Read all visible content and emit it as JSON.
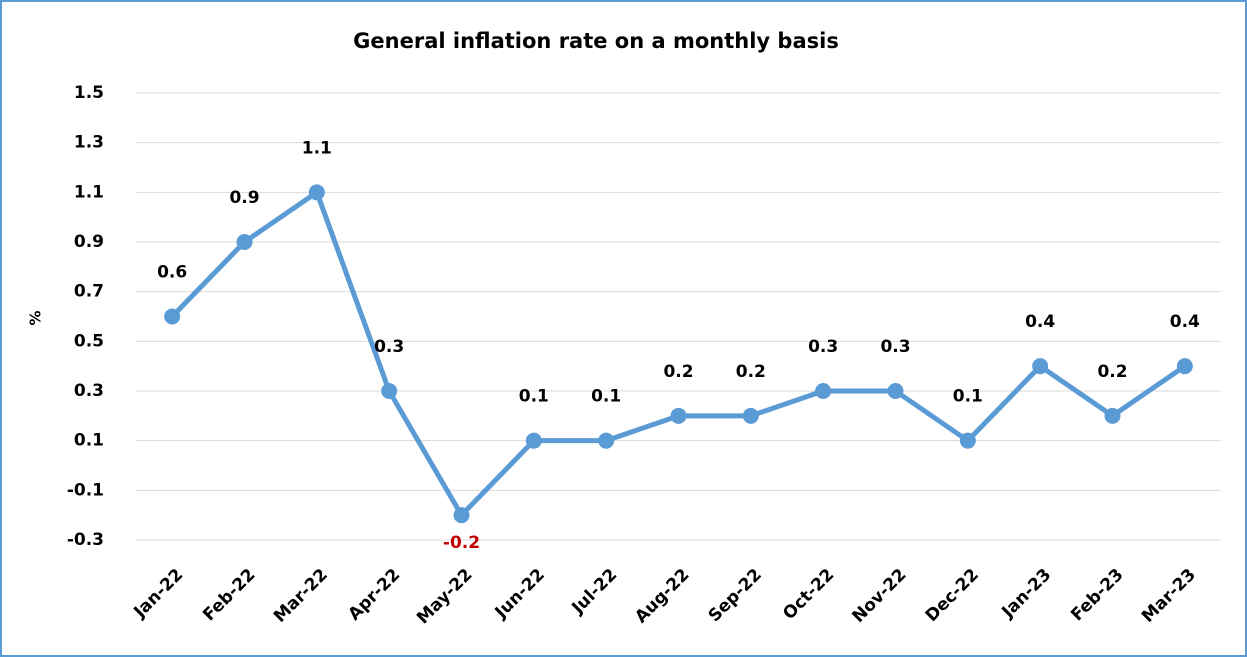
{
  "chart_data": {
    "type": "line",
    "title": "General inflation rate on a monthly basis",
    "y_label": "%",
    "categories": [
      "Jan-22",
      "Feb-22",
      "Mar-22",
      "Apr-22",
      "May-22",
      "Jun-22",
      "Jul-22",
      "Aug-22",
      "Sep-22",
      "Oct-22",
      "Nov-22",
      "Dec-22",
      "Jan-23",
      "Feb-23",
      "Mar-23"
    ],
    "series": [
      {
        "name": "General inflation rate",
        "color": "#5b9bd5",
        "values": [
          0.6,
          0.9,
          1.1,
          0.3,
          -0.2,
          0.1,
          0.1,
          0.2,
          0.2,
          0.3,
          0.3,
          0.1,
          0.4,
          0.2,
          0.4
        ]
      }
    ],
    "negative_label_color": "#c00000",
    "ylim": [
      -0.3,
      1.5
    ],
    "yticks": [
      -0.3,
      -0.1,
      0.1,
      0.3,
      0.5,
      0.7,
      0.9,
      1.1,
      1.3,
      1.5
    ],
    "grid": true
  }
}
